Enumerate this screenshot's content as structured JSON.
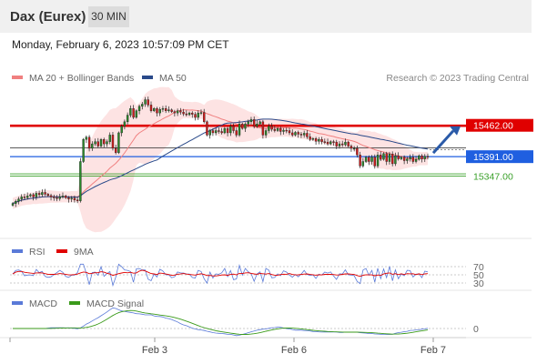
{
  "header": {
    "instrument": "Dax (Eurex)",
    "timeframe": "30 MIN"
  },
  "datetime": "Monday, February 6, 2023 10:57:09 PM CET",
  "copyright": "Research © 2023 Trading Central",
  "legend": {
    "ma20bb": {
      "label": "MA 20 + Bollinger Bands",
      "color": "#f08080"
    },
    "ma50": {
      "label": "MA 50",
      "color": "#2a4a8a"
    },
    "rsi": {
      "label": "RSI",
      "color": "#5a7ad8"
    },
    "rsi9ma": {
      "label": "9MA",
      "color": "#e00000"
    },
    "macd": {
      "label": "MACD",
      "color": "#5a7ad8"
    },
    "macdsignal": {
      "label": "MACD Signal",
      "color": "#3a9a1a"
    }
  },
  "chart_data": [
    {
      "type": "candlestick",
      "ylim": [
        15210,
        15550
      ],
      "x_labels": [
        "Feb 3",
        "Feb 6",
        "Feb 7"
      ],
      "close": [
        15285,
        15290,
        15295,
        15300,
        15298,
        15302,
        15305,
        15300,
        15308,
        15305,
        15310,
        15306,
        15303,
        15300,
        15298,
        15296,
        15300,
        15302,
        15298,
        15295,
        15297,
        15293,
        15291,
        15380,
        15430,
        15435,
        15410,
        15420,
        15425,
        15415,
        15430,
        15420,
        15425,
        15440,
        15410,
        15400,
        15445,
        15460,
        15470,
        15485,
        15500,
        15480,
        15495,
        15505,
        15510,
        15520,
        15508,
        15495,
        15500,
        15490,
        15498,
        15500,
        15495,
        15497,
        15493,
        15490,
        15495,
        15492,
        15488,
        15486,
        15490,
        15487,
        15480,
        15490,
        15491,
        15470,
        15440,
        15450,
        15445,
        15450,
        15448,
        15445,
        15455,
        15445,
        15460,
        15450,
        15440,
        15465,
        15455,
        15465,
        15470,
        15475,
        15460,
        15465,
        15470,
        15440,
        15450,
        15460,
        15453,
        15450,
        15455,
        15448,
        15451,
        15450,
        15445,
        15440,
        15446,
        15442,
        15440,
        15444,
        15436,
        15430,
        15432,
        15426,
        15430,
        15425,
        15424,
        15420,
        15425,
        15424,
        15415,
        15420,
        15418,
        15424,
        15415,
        15410,
        15410,
        15395,
        15370,
        15380,
        15390,
        15380,
        15390,
        15370,
        15395,
        15385,
        15398,
        15380,
        15397,
        15375,
        15393,
        15386,
        15390,
        15382,
        15386,
        15390,
        15380,
        15385,
        15393,
        15386,
        15392,
        15391
      ],
      "markers": {
        "t1": 15462,
        "t2": 15460,
        "t3": 15411,
        "pivot": 15391,
        "s1": 15352,
        "s2": 15347
      },
      "price_labels": [
        "15462.00",
        "15391.00",
        "15347.00"
      ]
    },
    {
      "type": "line",
      "name_series": [
        "RSI",
        "9MA"
      ],
      "levels": [
        30,
        50,
        70
      ],
      "level_labels": [
        "70",
        "50",
        "30"
      ]
    },
    {
      "type": "line",
      "name_series": [
        "MACD",
        "MACD Signal"
      ],
      "zero_label": "0"
    }
  ]
}
